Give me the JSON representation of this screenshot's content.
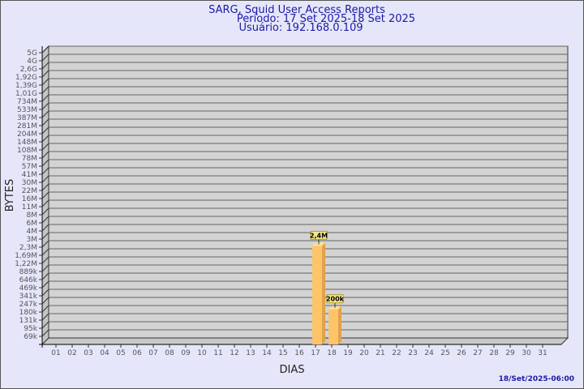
{
  "chart_data": {
    "type": "bar",
    "title": "SARG, Squid User Access Reports",
    "subtitle_period": "Período: 17 Set 2025-18 Set 2025",
    "subtitle_user": "Usuário: 192.168.0.109",
    "xlabel": "DIAS",
    "ylabel": "BYTES",
    "y_scale": "log",
    "grid": true,
    "categories": [
      "01",
      "02",
      "03",
      "04",
      "05",
      "06",
      "07",
      "08",
      "09",
      "10",
      "11",
      "12",
      "13",
      "14",
      "15",
      "16",
      "17",
      "18",
      "19",
      "20",
      "21",
      "22",
      "23",
      "24",
      "25",
      "26",
      "27",
      "28",
      "29",
      "30",
      "31"
    ],
    "y_ticks": [
      "5G",
      "4G",
      "2,6G",
      "1,92G",
      "1,39G",
      "1,01G",
      "734M",
      "533M",
      "387M",
      "281M",
      "204M",
      "148M",
      "108M",
      "78M",
      "57M",
      "41M",
      "30M",
      "22M",
      "16M",
      "11M",
      "8M",
      "6M",
      "4M",
      "3M",
      "2,3M",
      "1,69M",
      "1,22M",
      "889k",
      "646k",
      "469k",
      "341k",
      "247k",
      "180k",
      "131k",
      "95k",
      "69k"
    ],
    "bars": [
      {
        "category": "17",
        "value": 2400000,
        "label": "2,4M"
      },
      {
        "category": "18",
        "value": 200000,
        "label": "200k"
      }
    ],
    "colors": {
      "bar_front": "#fdc46a",
      "bar_side": "#e0a24a",
      "bar_top": "#fde08f",
      "wall": "#d3d3d3",
      "background": "#e6e6fa",
      "label_box": "#f3e98a"
    }
  },
  "footer": {
    "timestamp": "18/Set/2025-06:00"
  }
}
